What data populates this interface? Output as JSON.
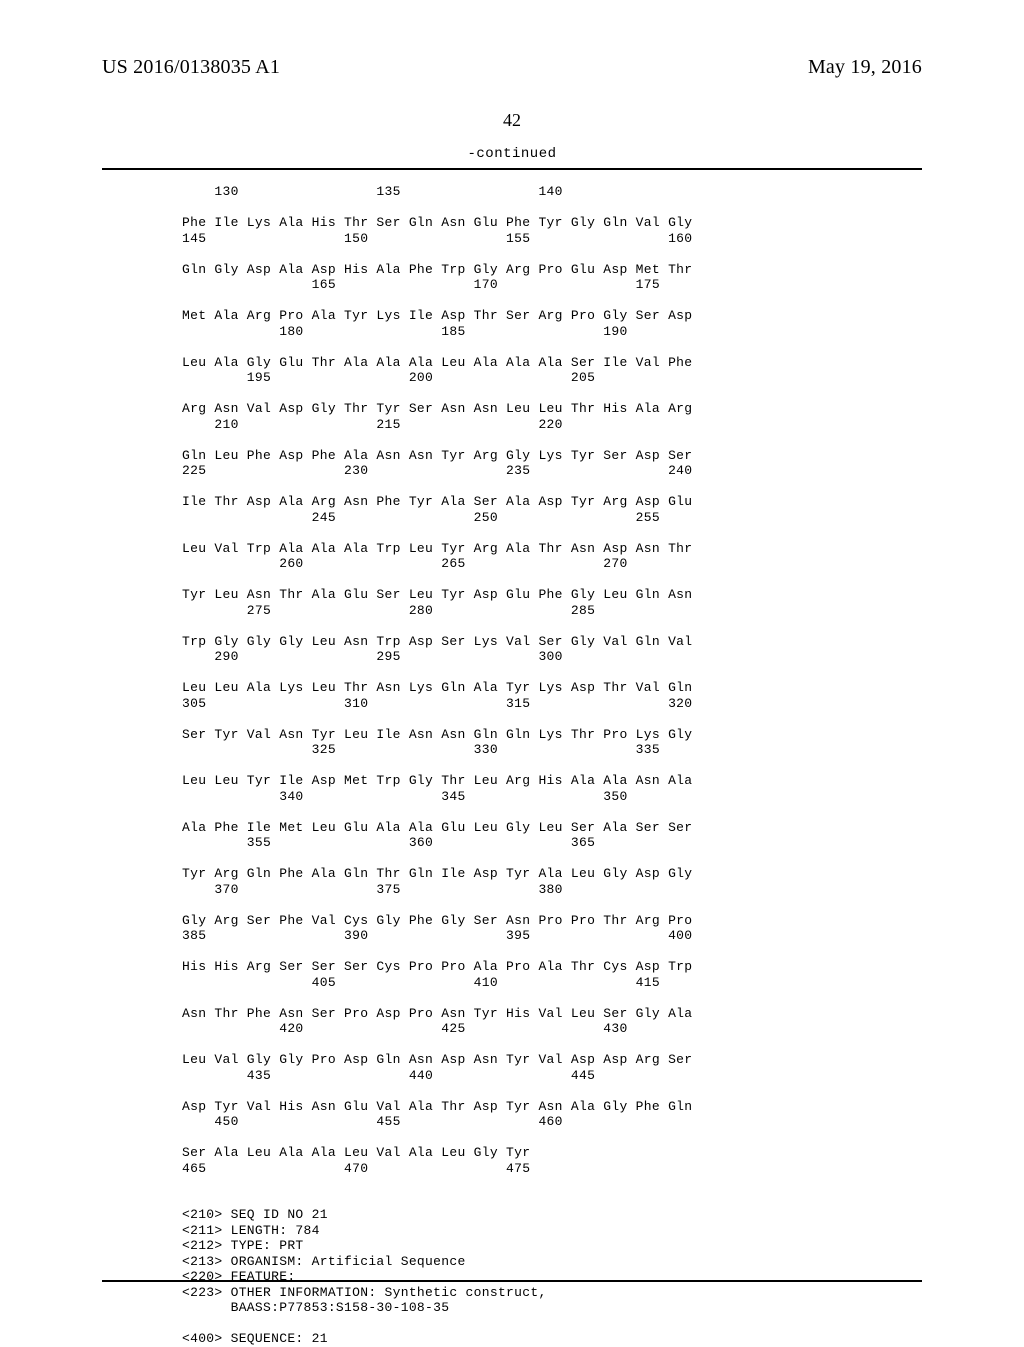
{
  "header": {
    "left": "US 2016/0138035 A1",
    "right": "May 19, 2016"
  },
  "page_number": "42",
  "continued_label": "-continued",
  "sequence_text": "    130                 135                 140\n\nPhe Ile Lys Ala His Thr Ser Gln Asn Glu Phe Tyr Gly Gln Val Gly\n145                 150                 155                 160\n\nGln Gly Asp Ala Asp His Ala Phe Trp Gly Arg Pro Glu Asp Met Thr\n                165                 170                 175\n\nMet Ala Arg Pro Ala Tyr Lys Ile Asp Thr Ser Arg Pro Gly Ser Asp\n            180                 185                 190\n\nLeu Ala Gly Glu Thr Ala Ala Ala Leu Ala Ala Ala Ser Ile Val Phe\n        195                 200                 205\n\nArg Asn Val Asp Gly Thr Tyr Ser Asn Asn Leu Leu Thr His Ala Arg\n    210                 215                 220\n\nGln Leu Phe Asp Phe Ala Asn Asn Tyr Arg Gly Lys Tyr Ser Asp Ser\n225                 230                 235                 240\n\nIle Thr Asp Ala Arg Asn Phe Tyr Ala Ser Ala Asp Tyr Arg Asp Glu\n                245                 250                 255\n\nLeu Val Trp Ala Ala Ala Trp Leu Tyr Arg Ala Thr Asn Asp Asn Thr\n            260                 265                 270\n\nTyr Leu Asn Thr Ala Glu Ser Leu Tyr Asp Glu Phe Gly Leu Gln Asn\n        275                 280                 285\n\nTrp Gly Gly Gly Leu Asn Trp Asp Ser Lys Val Ser Gly Val Gln Val\n    290                 295                 300\n\nLeu Leu Ala Lys Leu Thr Asn Lys Gln Ala Tyr Lys Asp Thr Val Gln\n305                 310                 315                 320\n\nSer Tyr Val Asn Tyr Leu Ile Asn Asn Gln Gln Lys Thr Pro Lys Gly\n                325                 330                 335\n\nLeu Leu Tyr Ile Asp Met Trp Gly Thr Leu Arg His Ala Ala Asn Ala\n            340                 345                 350\n\nAla Phe Ile Met Leu Glu Ala Ala Glu Leu Gly Leu Ser Ala Ser Ser\n        355                 360                 365\n\nTyr Arg Gln Phe Ala Gln Thr Gln Ile Asp Tyr Ala Leu Gly Asp Gly\n    370                 375                 380\n\nGly Arg Ser Phe Val Cys Gly Phe Gly Ser Asn Pro Pro Thr Arg Pro\n385                 390                 395                 400\n\nHis His Arg Ser Ser Ser Cys Pro Pro Ala Pro Ala Thr Cys Asp Trp\n                405                 410                 415\n\nAsn Thr Phe Asn Ser Pro Asp Pro Asn Tyr His Val Leu Ser Gly Ala\n            420                 425                 430\n\nLeu Val Gly Gly Pro Asp Gln Asn Asp Asn Tyr Val Asp Asp Arg Ser\n        435                 440                 445\n\nAsp Tyr Val His Asn Glu Val Ala Thr Asp Tyr Asn Ala Gly Phe Gln\n    450                 455                 460\n\nSer Ala Leu Ala Ala Leu Val Ala Leu Gly Tyr\n465                 470                 475\n\n\n<210> SEQ ID NO 21\n<211> LENGTH: 784\n<212> TYPE: PRT\n<213> ORGANISM: Artificial Sequence\n<220> FEATURE:\n<223> OTHER INFORMATION: Synthetic construct,\n      BAASS:P77853:S158-30-108-35\n\n<400> SEQUENCE: 21"
}
